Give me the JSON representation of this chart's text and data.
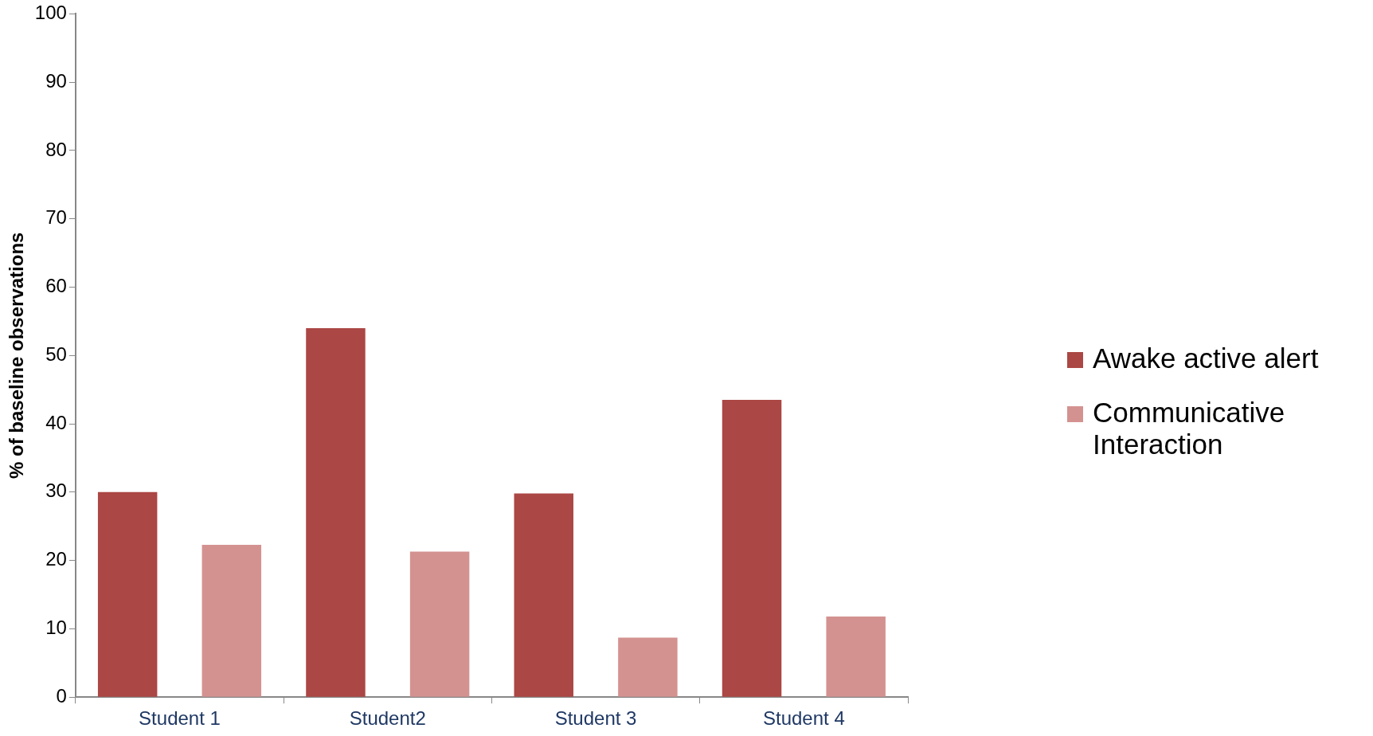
{
  "chart_data": {
    "type": "bar",
    "ylabel": "% of baseline observations",
    "categories": [
      "Student 1",
      "Student2",
      "Student 3",
      "Student 4"
    ],
    "series": [
      {
        "name": "Awake active alert",
        "color": "#ab4744",
        "values": [
          30,
          54,
          29.8,
          43.5
        ]
      },
      {
        "name": "Communicative Interaction",
        "color": "#d39290",
        "values": [
          22.3,
          21.3,
          8.7,
          11.8
        ]
      }
    ],
    "ylim": [
      0,
      100
    ],
    "yticks": [
      0,
      10,
      20,
      30,
      40,
      50,
      60,
      70,
      80,
      90,
      100
    ],
    "grid": false,
    "legend": "right"
  }
}
